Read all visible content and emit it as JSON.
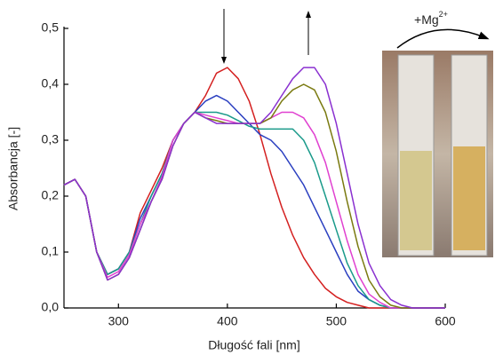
{
  "chart_data": {
    "type": "line",
    "xlabel": "Długość fali [nm]",
    "ylabel": "Absorbancja [-]",
    "annotation": {
      "text": "+Mg",
      "sup": "2+"
    },
    "xlim": [
      250,
      600
    ],
    "xticks": [
      300,
      400,
      500,
      600
    ],
    "ylim": [
      0,
      0.5
    ],
    "yticks": [
      {
        "value": 0,
        "label": "0,0"
      },
      {
        "value": 0.1,
        "label": "0,1"
      },
      {
        "value": 0.2,
        "label": "0,2"
      },
      {
        "value": 0.3,
        "label": "0,3"
      },
      {
        "value": 0.4,
        "label": "0,4"
      },
      {
        "value": 0.5,
        "label": "0,5"
      }
    ],
    "x": [
      250,
      260,
      270,
      280,
      290,
      300,
      310,
      320,
      330,
      340,
      350,
      360,
      370,
      380,
      390,
      400,
      410,
      420,
      430,
      440,
      450,
      460,
      470,
      480,
      490,
      500,
      510,
      520,
      530,
      540,
      550,
      560,
      570,
      580,
      590,
      600
    ],
    "series": [
      {
        "color": "#d42020",
        "values": [
          0.22,
          0.23,
          0.2,
          0.1,
          0.06,
          0.07,
          0.1,
          0.17,
          0.21,
          0.25,
          0.3,
          0.33,
          0.35,
          0.38,
          0.42,
          0.43,
          0.41,
          0.37,
          0.31,
          0.24,
          0.18,
          0.13,
          0.09,
          0.06,
          0.035,
          0.02,
          0.01,
          0.005,
          0,
          0,
          0,
          0,
          0,
          0,
          0,
          0
        ]
      },
      {
        "color": "#2a3fc0",
        "values": [
          0.22,
          0.23,
          0.2,
          0.1,
          0.06,
          0.07,
          0.1,
          0.16,
          0.2,
          0.24,
          0.3,
          0.33,
          0.35,
          0.37,
          0.38,
          0.37,
          0.35,
          0.33,
          0.31,
          0.3,
          0.28,
          0.25,
          0.22,
          0.18,
          0.14,
          0.1,
          0.06,
          0.03,
          0.015,
          0.005,
          0,
          0,
          0,
          0,
          0,
          0
        ]
      },
      {
        "color": "#1a9a8a",
        "values": [
          0.22,
          0.23,
          0.2,
          0.1,
          0.06,
          0.07,
          0.1,
          0.15,
          0.2,
          0.24,
          0.3,
          0.33,
          0.35,
          0.35,
          0.35,
          0.345,
          0.335,
          0.325,
          0.32,
          0.32,
          0.32,
          0.32,
          0.3,
          0.26,
          0.2,
          0.14,
          0.08,
          0.04,
          0.015,
          0.005,
          0,
          0,
          0,
          0,
          0,
          0
        ]
      },
      {
        "color": "#e040d0",
        "values": [
          0.22,
          0.23,
          0.2,
          0.1,
          0.055,
          0.065,
          0.095,
          0.15,
          0.19,
          0.235,
          0.3,
          0.33,
          0.35,
          0.345,
          0.34,
          0.335,
          0.33,
          0.33,
          0.33,
          0.34,
          0.35,
          0.35,
          0.34,
          0.31,
          0.26,
          0.19,
          0.12,
          0.06,
          0.025,
          0.01,
          0,
          0,
          0,
          0,
          0,
          0
        ]
      },
      {
        "color": "#7a7a10",
        "values": [
          0.22,
          0.23,
          0.2,
          0.1,
          0.05,
          0.06,
          0.09,
          0.14,
          0.19,
          0.23,
          0.29,
          0.33,
          0.35,
          0.34,
          0.335,
          0.33,
          0.33,
          0.33,
          0.33,
          0.34,
          0.37,
          0.39,
          0.4,
          0.39,
          0.35,
          0.28,
          0.19,
          0.11,
          0.05,
          0.02,
          0.005,
          0,
          0,
          0,
          0,
          0
        ]
      },
      {
        "color": "#8a30d0",
        "values": [
          0.22,
          0.23,
          0.2,
          0.1,
          0.05,
          0.06,
          0.09,
          0.14,
          0.19,
          0.23,
          0.29,
          0.33,
          0.35,
          0.34,
          0.33,
          0.33,
          0.33,
          0.33,
          0.33,
          0.35,
          0.38,
          0.41,
          0.43,
          0.43,
          0.4,
          0.33,
          0.24,
          0.15,
          0.08,
          0.04,
          0.015,
          0.005,
          0,
          0,
          0,
          0
        ]
      }
    ]
  }
}
